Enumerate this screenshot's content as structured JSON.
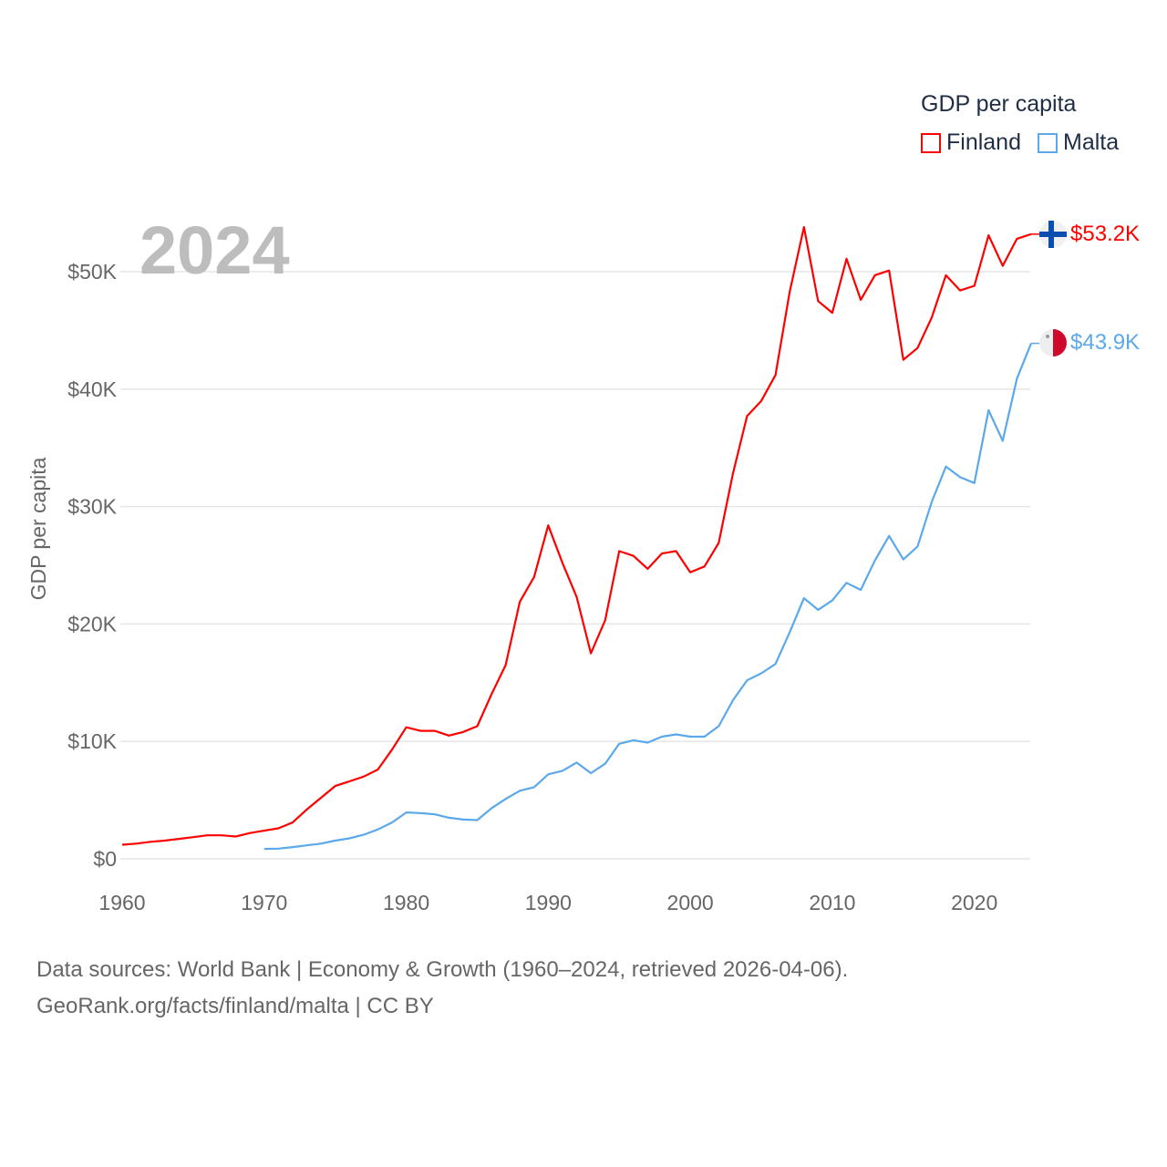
{
  "chart_data": {
    "type": "line",
    "title": "GDP per capita",
    "year_label": "2024",
    "ylabel": "GDP per capita",
    "xlabel": "",
    "xlim": [
      1960,
      2024
    ],
    "ylim": [
      0,
      55000
    ],
    "x_ticks": [
      1960,
      1970,
      1980,
      1990,
      2000,
      2010,
      2020
    ],
    "y_ticks": [
      0,
      10000,
      20000,
      30000,
      40000,
      50000
    ],
    "y_tick_labels": [
      "$0",
      "$10K",
      "$20K",
      "$30K",
      "$40K",
      "$50K"
    ],
    "grid": true,
    "legend_position": "top-right",
    "series": [
      {
        "name": "Finland",
        "color": "#ff0000",
        "end_label": "$53.2K",
        "start_year": 1960,
        "values": [
          1200,
          1300,
          1450,
          1550,
          1700,
          1850,
          2000,
          2000,
          1900,
          2200,
          2400,
          2600,
          3100,
          4200,
          5200,
          6200,
          6600,
          7000,
          7600,
          9300,
          11200,
          10900,
          10900,
          10500,
          10800,
          11300,
          14000,
          16500,
          21900,
          24000,
          28400,
          25200,
          22300,
          17500,
          20300,
          26200,
          25800,
          24700,
          26000,
          26200,
          24400,
          24900,
          26900,
          32800,
          37700,
          39000,
          41200,
          48300,
          53800,
          47500,
          46500,
          51100,
          47600,
          49700,
          50100,
          42500,
          43500,
          46100,
          49700,
          48400,
          48800,
          53100,
          50500,
          52800,
          53200
        ]
      },
      {
        "name": "Malta",
        "color": "#5ba8ea",
        "end_label": "$43.9K",
        "start_year": 1970,
        "values": [
          850,
          870,
          1000,
          1150,
          1300,
          1550,
          1750,
          2050,
          2500,
          3100,
          3950,
          3900,
          3800,
          3500,
          3350,
          3300,
          4300,
          5100,
          5800,
          6100,
          7200,
          7500,
          8200,
          7300,
          8100,
          9800,
          10100,
          9900,
          10400,
          10600,
          10400,
          10400,
          11300,
          13500,
          15200,
          15800,
          16600,
          19300,
          22200,
          21200,
          22000,
          23500,
          22900,
          25400,
          27500,
          25500,
          26600,
          30400,
          33400,
          32500,
          32000,
          38200,
          35600,
          40900,
          43900
        ]
      }
    ]
  },
  "footer": {
    "line1": "Data sources: World Bank | Economy & Growth (1960–2024, retrieved 2026-04-06).",
    "line2": "GeoRank.org/facts/finland/malta | CC BY"
  }
}
